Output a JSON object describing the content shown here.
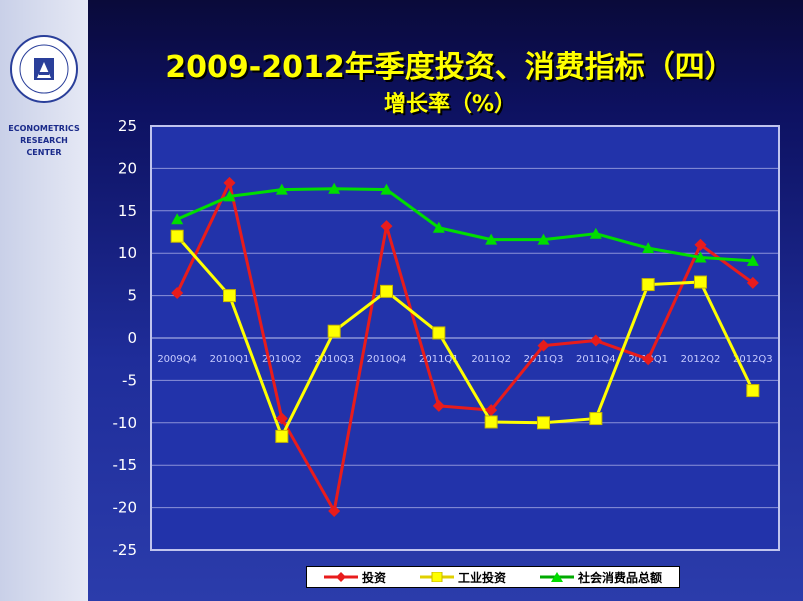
{
  "header": {
    "title": "2009-2012年季度投资、消费指标（四）",
    "subtitle": "增长率（%）"
  },
  "sidebar": {
    "logo_icon": "academy-seal-icon",
    "center_lines": [
      "ECONOMETRICS",
      "RESEARCH",
      "CENTER"
    ]
  },
  "colors": {
    "plot_bg": "#2233aa",
    "grid": "#8b92d8",
    "series_red": "#e81c1c",
    "series_yellow": "#ffff00",
    "series_green": "#00dd00",
    "title": "#ffff00"
  },
  "chart_data": {
    "type": "line",
    "title": "2009-2012年季度投资、消费指标（四）",
    "subtitle": "增长率（%）",
    "categories": [
      "2009Q4",
      "2010Q1",
      "2010Q2",
      "2010Q3",
      "2010Q4",
      "2011Q1",
      "2011Q2",
      "2011Q3",
      "2011Q4",
      "2012Q1",
      "2012Q2",
      "2012Q3"
    ],
    "ylim": [
      -25,
      25
    ],
    "yticks": [
      25,
      20,
      15,
      10,
      5,
      0,
      -5,
      -10,
      -15,
      -20,
      -25
    ],
    "grid": true,
    "legend_position": "bottom",
    "series": [
      {
        "name": "投资",
        "color": "#e81c1c",
        "marker": "diamond",
        "values": [
          5.3,
          18.3,
          -9.5,
          -20.4,
          13.2,
          -8.0,
          -8.5,
          -0.9,
          -0.3,
          -2.5,
          11.0,
          6.5
        ]
      },
      {
        "name": "工业投资",
        "color": "#ffff00",
        "marker": "square",
        "values": [
          12.0,
          5.0,
          -11.6,
          0.8,
          5.5,
          0.6,
          -9.9,
          -10.0,
          -9.5,
          6.3,
          6.6,
          -6.2
        ]
      },
      {
        "name": "社会消费品总额",
        "color": "#00dd00",
        "marker": "triangle",
        "values": [
          14.0,
          16.7,
          17.5,
          17.6,
          17.5,
          13.0,
          11.6,
          11.6,
          12.3,
          10.6,
          9.5,
          9.1
        ]
      }
    ]
  }
}
